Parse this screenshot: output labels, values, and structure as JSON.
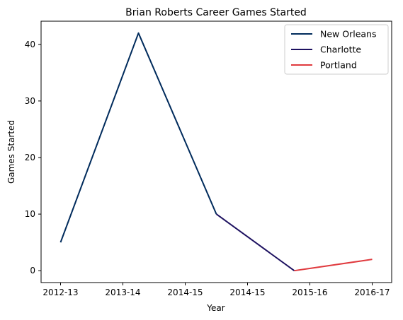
{
  "chart_data": {
    "type": "line",
    "title": "Brian Roberts  Career Games Started",
    "xlabel": "Year",
    "ylabel": "Games Started",
    "categories": [
      "2012-13",
      "2013-14",
      "2014-15",
      "2014-15",
      "2015-16",
      "2016-17"
    ],
    "yticks": [
      0,
      10,
      20,
      30,
      40
    ],
    "ylim": [
      -2.1,
      44.1
    ],
    "grid": false,
    "legend_position": "top-right",
    "series": [
      {
        "name": "New Orleans",
        "color": "#002b5c",
        "x": [
          0,
          1,
          2
        ],
        "values": [
          5,
          42,
          10
        ]
      },
      {
        "name": "Charlotte",
        "color": "#1d1160",
        "x": [
          2,
          3
        ],
        "values": [
          10,
          0
        ]
      },
      {
        "name": "Portland",
        "color": "#e03a3e",
        "x": [
          3,
          4
        ],
        "values": [
          0,
          2
        ]
      }
    ]
  }
}
